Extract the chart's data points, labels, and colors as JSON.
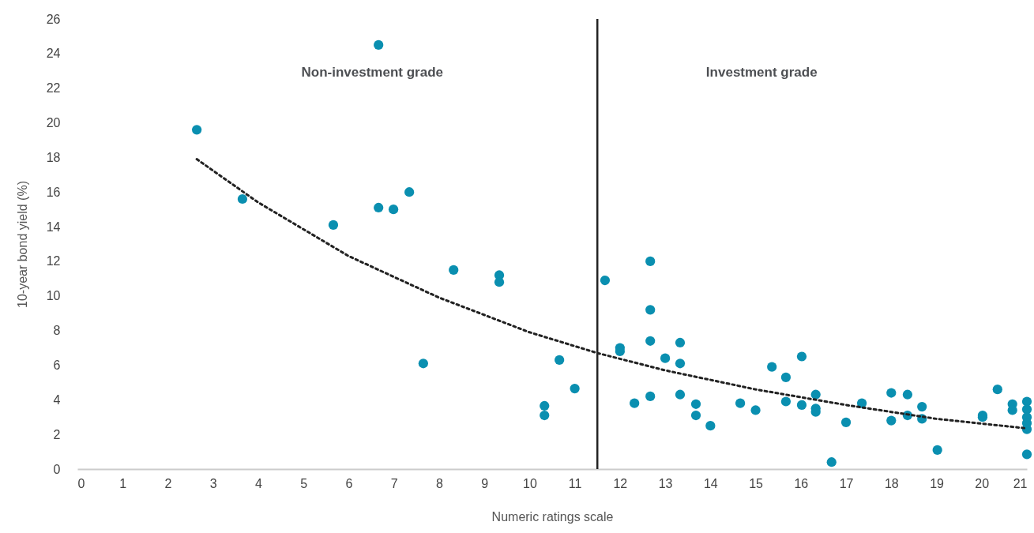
{
  "chart_data": {
    "type": "scatter",
    "xlabel": "Numeric ratings scale",
    "ylabel": "10-year bond yield (%)",
    "xlim": [
      0,
      21
    ],
    "ylim": [
      0,
      26
    ],
    "xticks": [
      0,
      1,
      2,
      3,
      4,
      5,
      6,
      7,
      8,
      9,
      10,
      11,
      12,
      13,
      14,
      15,
      16,
      17,
      18,
      19,
      20,
      21
    ],
    "yticks": [
      0,
      2,
      4,
      6,
      8,
      10,
      12,
      14,
      16,
      18,
      20,
      22,
      24,
      26
    ],
    "grid": false,
    "annotations": [
      "Non-investment grade",
      "Investment grade"
    ],
    "ref_lines": [
      {
        "axis": "x",
        "value": 11.5,
        "color": "#222222",
        "line_style": "solid"
      }
    ],
    "series": [
      {
        "color": "#0a8fb0",
        "marker": "circle",
        "x": [
          2.64,
          3.65,
          5.66,
          6.66,
          6.66,
          6.99,
          7.34,
          7.65,
          8.32,
          9.33,
          9.33,
          10.33,
          10.33,
          10.66,
          11.0,
          11.67,
          12.0,
          12.0,
          12.32,
          12.67,
          12.67,
          12.67,
          12.67,
          13.0,
          13.33,
          13.33,
          13.33,
          13.68,
          13.68,
          14.0,
          14.66,
          15.0,
          15.36,
          15.67,
          15.67,
          16.02,
          16.02,
          16.33,
          16.33,
          16.33,
          16.68,
          17.0,
          17.35,
          18.0,
          18.0,
          18.36,
          18.36,
          18.68,
          18.68,
          19.02,
          20.02,
          20.02,
          20.35,
          20.68,
          20.68,
          21,
          21,
          21,
          21,
          21,
          21
        ],
        "values": [
          19.6,
          15.6,
          14.1,
          24.5,
          15.1,
          15.0,
          16.0,
          6.1,
          11.5,
          11.2,
          10.8,
          3.65,
          3.1,
          6.3,
          4.65,
          10.9,
          7.0,
          6.8,
          3.8,
          12.0,
          9.2,
          7.4,
          4.2,
          6.4,
          7.3,
          6.1,
          4.3,
          3.75,
          3.1,
          2.5,
          3.8,
          3.4,
          5.9,
          5.3,
          3.9,
          6.5,
          3.7,
          4.3,
          3.5,
          3.3,
          0.4,
          2.7,
          3.8,
          4.4,
          2.8,
          4.3,
          3.1,
          3.6,
          2.9,
          1.1,
          3.1,
          3.0,
          4.6,
          3.75,
          3.4,
          3.9,
          3.45,
          3.0,
          2.65,
          2.3,
          0.85
        ]
      },
      {
        "type": "line",
        "color": "#222222",
        "line_style": "dotted",
        "x": [
          2.64,
          4,
          6,
          8,
          10,
          11.5,
          13,
          15,
          17,
          19,
          21
        ],
        "values": [
          17.9,
          15.4,
          12.3,
          9.9,
          7.9,
          6.7,
          5.7,
          4.6,
          3.7,
          2.9,
          2.35
        ]
      }
    ]
  }
}
